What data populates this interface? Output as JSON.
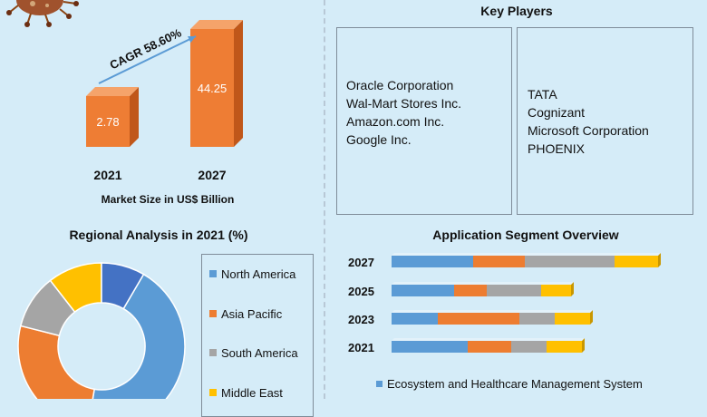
{
  "colors": {
    "background": "#d5ecf8",
    "bar_front": "#ee7d34",
    "bar_side": "#c0571a",
    "bar_top": "#f5a36a",
    "blue": "#5b9bd5",
    "orange": "#ed7d31",
    "gray": "#a5a5a5",
    "yellow": "#ffc000",
    "dark_blue": "#4472c4",
    "arrow": "#5b9bd5"
  },
  "market": {
    "cagr_label": "CAGR 58.60%",
    "caption": "Market Size in US$ Billion"
  },
  "key_players": {
    "title": "Key Players",
    "left": [
      "Oracle Corporation",
      "Wal-Mart Stores Inc.",
      "Amazon.com Inc.",
      "Google Inc."
    ],
    "right": [
      "TATA",
      "Cognizant",
      "Microsoft Corporation",
      "PHOENIX"
    ]
  },
  "regional": {
    "title": "Regional Analysis in 2021 (%)"
  },
  "application": {
    "title": "Application Segment Overview",
    "legend_label": "Ecosystem and Healthcare Management System"
  },
  "chart_data": [
    {
      "type": "bar",
      "categories": [
        "2021",
        "2027"
      ],
      "values": [
        2.78,
        44.25
      ],
      "data_labels": [
        "2.78",
        "44.25"
      ],
      "xlabel": "Market Size in US$ Billion",
      "annotation": "CAGR 58.60%"
    },
    {
      "type": "pie",
      "title": "Regional Analysis in 2021 (%)",
      "labels": [
        "North America",
        "Asia Pacific",
        "South America",
        "Middle East",
        ""
      ],
      "values": [
        42,
        25,
        10,
        10,
        8
      ],
      "colors": [
        "#5b9bd5",
        "#ed7d31",
        "#a5a5a5",
        "#ffc000",
        "#4472c4"
      ]
    },
    {
      "type": "bar",
      "orientation": "horizontal",
      "stacked": true,
      "title": "Application Segment Overview",
      "categories": [
        "2027",
        "2025",
        "2023",
        "2021"
      ],
      "series": [
        {
          "name": "Ecosystem and Healthcare Management System",
          "values": [
            30,
            23,
            17,
            28
          ],
          "color": "#5b9bd5"
        },
        {
          "values": [
            19,
            12,
            30,
            16
          ],
          "color": "#ed7d31"
        },
        {
          "values": [
            33,
            20,
            13,
            13
          ],
          "color": "#a5a5a5"
        },
        {
          "values": [
            16,
            11,
            13,
            13
          ],
          "color": "#ffc000"
        }
      ]
    }
  ]
}
